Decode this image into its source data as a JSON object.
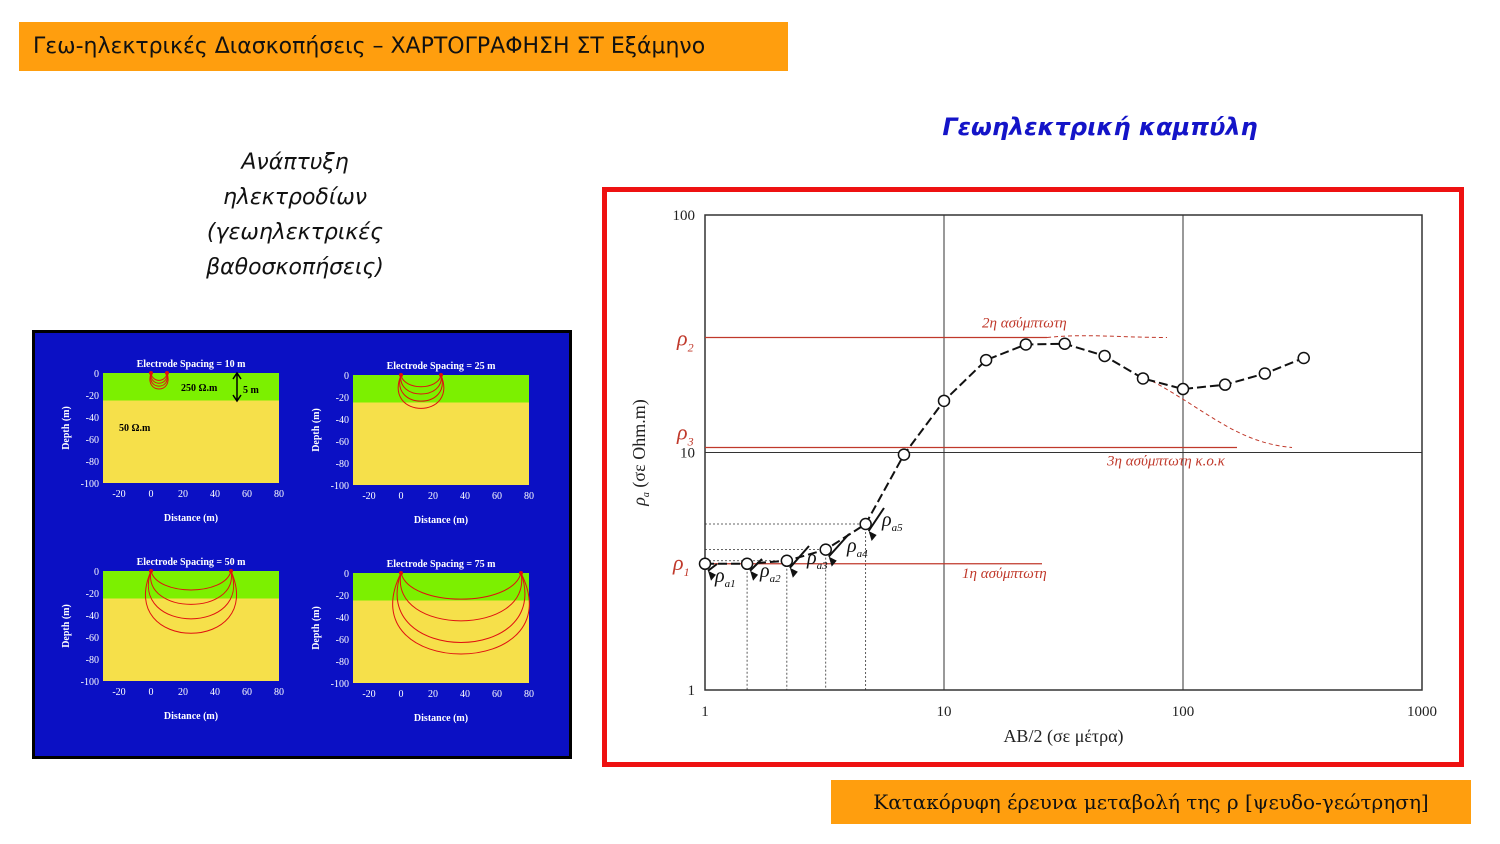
{
  "header": {
    "title": "Γεω-ηλεκτρικές Διασκοπήσεις – ΧΑΡΤΟΓΡΑΦΗΣΗ ΣΤ Εξάμηνο"
  },
  "left_caption": {
    "lines": [
      "Ανάπτυξη",
      "ηλεκτροδίων",
      "(γεωηλεκτρικές",
      "βαθοσκοπήσεις)"
    ]
  },
  "right_title": "Γεωηλεκτρική καμπύλη",
  "bottom_caption": "Κατακόρυφη έρευνα μεταβολή της ρ  [ψευδο-γεώτρηση]",
  "colors": {
    "orange": "#ff9e0e",
    "blue_panel": "#0b10c4",
    "green_layer": "#7cf000",
    "yellow_layer": "#f6e04a",
    "red": "#ee1111",
    "asymptote": "#c0392b"
  },
  "electrode_panels": [
    {
      "title": "Electrode Spacing = 10 m",
      "top_label": "250 Ω.m",
      "thickness_label": "5 m",
      "bottom_label": "50 Ω.m",
      "spacing": 10
    },
    {
      "title": "Electrode Spacing = 25 m",
      "spacing": 25
    },
    {
      "title": "Electrode Spacing = 50 m",
      "spacing": 50
    },
    {
      "title": "Electrode Spacing = 75 m",
      "spacing": 75
    }
  ],
  "electrode_axes": {
    "xlabel": "Distance (m)",
    "ylabel": "Depth (m)",
    "xticks": [
      "-20",
      "0",
      "20",
      "40",
      "60",
      "80"
    ],
    "yticks": [
      "0",
      "-20",
      "-40",
      "-60",
      "-80",
      "-100"
    ]
  },
  "chart_data": {
    "type": "line",
    "xlabel": "AB/2 (σε μέτρα)",
    "ylabel": "ρ",
    "ylabel_sub": "a",
    "ylabel_unit": " (σε Ohm.m)",
    "xscale": "log",
    "yscale": "log",
    "xlim": [
      1,
      1000
    ],
    "ylim": [
      1,
      100
    ],
    "xticks": [
      "1",
      "10",
      "100",
      "1000"
    ],
    "yticks": [
      "1",
      "10",
      "100"
    ],
    "series": [
      {
        "x": [
          1,
          1.5,
          2.2,
          3.2,
          4.7,
          6.8,
          10,
          15,
          22,
          32,
          47,
          68,
          100,
          150,
          220,
          320
        ],
        "y": [
          3.4,
          3.4,
          3.5,
          3.9,
          5.0,
          9.8,
          16.5,
          24.5,
          28.5,
          28.7,
          25.5,
          20.5,
          18.5,
          19.3,
          21.5,
          25.0
        ]
      }
    ],
    "asymptotes": [
      {
        "label": "1η ασύμπτωτη",
        "letter": "ρ",
        "sub": "1"
      },
      {
        "label": "2η ασύμπτωτη",
        "letter": "ρ",
        "sub": "2"
      },
      {
        "label": "3η ασύμπτωτη κ.ο.κ",
        "letter": "ρ",
        "sub": "3"
      }
    ],
    "point_labels": [
      {
        "letter": "ρ",
        "sub": "a1"
      },
      {
        "letter": "ρ",
        "sub": "a2"
      },
      {
        "letter": "ρ",
        "sub": "a3"
      },
      {
        "letter": "ρ",
        "sub": "a4"
      },
      {
        "letter": "ρ",
        "sub": "a5"
      }
    ]
  }
}
